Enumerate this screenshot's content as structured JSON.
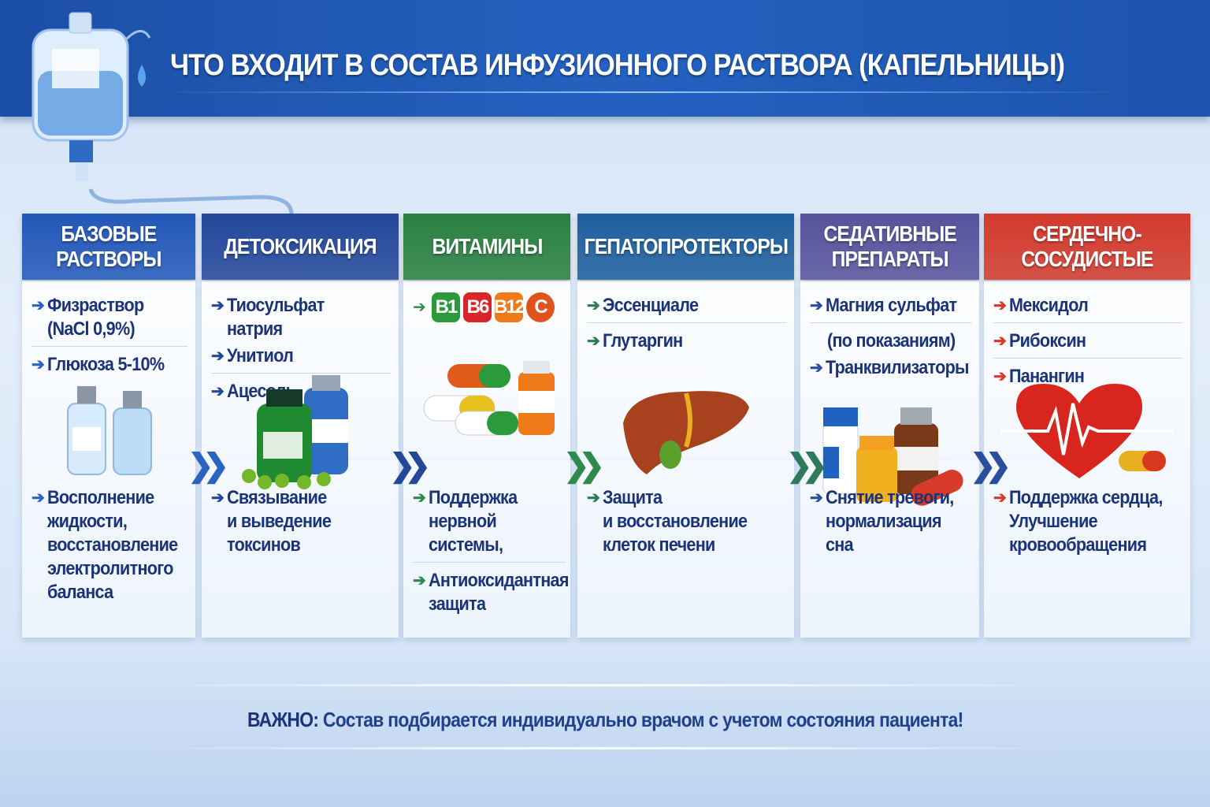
{
  "header": {
    "title": "ЧТО ВХОДИТ В СОСТАВ ИНФУЗИОННОГО РАСТВОРА (КАПЕЛЬНИЦЫ)",
    "icon": "iv-bag-icon"
  },
  "columns": [
    {
      "title": "БАЗОВЫЕ\nРАСТВОРЫ",
      "color": "#2358b8",
      "arrow_color": "#2a63c0",
      "items": [
        {
          "text": "Физраствор\n(NaCl 0,9%)",
          "sep": true
        },
        {
          "text": "Глюкоза 5-10%"
        }
      ],
      "benefits": [
        {
          "text": "Восполнение\nжидкости,\nвосстановление\nэлектролитного\nбаланса"
        }
      ],
      "icon": "saline-bottles-icon"
    },
    {
      "title": "ДЕТОКСИКАЦИЯ",
      "color": "#24479a",
      "arrow_color": "#24479a",
      "items": [
        {
          "text": "Тиосульфат натрия"
        },
        {
          "text": "Унитиол",
          "sep": true
        },
        {
          "text": "Ацесоль"
        }
      ],
      "benefits": [
        {
          "text": "Связывание\nи выведение\nтоксинов"
        }
      ],
      "icon": "detox-bottles-icon"
    },
    {
      "title": "ВИТАМИНЫ",
      "color": "#2a8040",
      "arrow_color": "#2e8a4a",
      "vitamins": [
        {
          "label": "B1",
          "color": "#2a9a3a"
        },
        {
          "label": "B6",
          "color": "#d9242a"
        },
        {
          "label": "B12",
          "color": "#ee7a1a"
        },
        {
          "label": "C",
          "color": "#e0531c"
        }
      ],
      "items": [],
      "benefits": [
        {
          "text": "Поддержка\nнервной\nсистемы,",
          "sep": true
        },
        {
          "text": "Антиоксидантная\nзащита"
        }
      ],
      "icon": "capsules-icon"
    },
    {
      "title": "ГЕПАТОПРОТЕКТОРЫ",
      "color": "#1f5f9e",
      "arrow_color": "#2f7a5a",
      "items": [
        {
          "text": "Эссенциале",
          "sep": true
        },
        {
          "text": "Глутаргин"
        }
      ],
      "benefits": [
        {
          "text": "Защита\nи восстановление\nклеток печени"
        }
      ],
      "icon": "liver-icon"
    },
    {
      "title": "СЕДАТИВНЫЕ\nПРЕПАРАТЫ",
      "color": "#57539c",
      "arrow_color": "#2a4f9e",
      "items": [
        {
          "text": "Магния сульфат",
          "sep": true
        },
        {
          "text": "(по показаниям)",
          "noarrow": true
        },
        {
          "text": "Транквилизаторы"
        }
      ],
      "benefits": [
        {
          "text": "Снятие тревоги,\nнормализация сна"
        }
      ],
      "icon": "pill-bottles-icon"
    },
    {
      "title": "СЕРДЕЧНО-\nСОСУДИСТЫЕ",
      "color": "#d33a2c",
      "arrow_color": "#d8392b",
      "items": [
        {
          "text": "Мексидол",
          "sep": true
        },
        {
          "text": "Рибоксин",
          "sep": true
        },
        {
          "text": "Панангин"
        }
      ],
      "benefits": [
        {
          "text": "Поддержка сердца,\nУлучшение\nкровообращения"
        }
      ],
      "icon": "heart-icon"
    }
  ],
  "footer": {
    "label": "ВАЖНО:",
    "text": " Состав подбирается индивидуально врачом с учетом состояния пациента!"
  }
}
